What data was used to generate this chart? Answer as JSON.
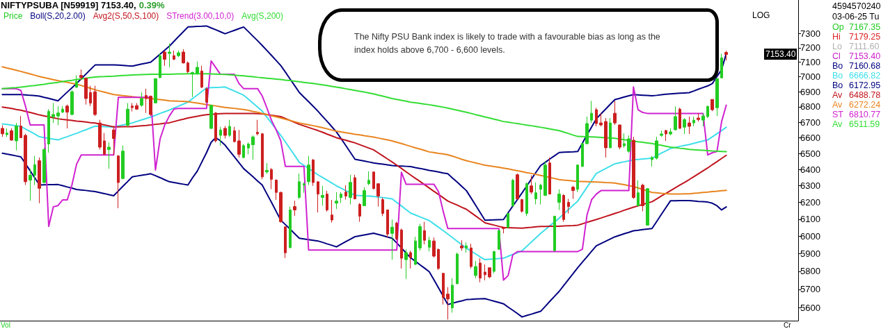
{
  "chart_data": {
    "type": "candlestick",
    "title": "NIFTYPSUBA [N59919] 7153.40,",
    "subtitle": "0.39%",
    "categories": [
      null,
      null,
      null,
      null,
      null,
      null,
      null,
      null,
      null,
      null,
      null,
      null,
      null,
      null,
      null,
      null,
      null,
      null,
      null,
      null,
      null,
      null,
      null,
      null,
      null,
      null,
      null,
      null,
      null,
      null,
      null,
      null,
      null,
      null,
      null,
      null,
      null,
      null,
      null,
      null,
      null,
      null,
      null,
      null,
      null,
      null,
      null,
      null,
      null,
      null,
      null,
      null,
      null,
      null,
      null,
      null,
      null,
      null,
      null,
      null,
      null,
      null,
      null,
      null,
      null,
      null,
      null,
      null,
      null,
      null,
      null,
      null,
      null,
      null,
      null,
      null,
      null,
      null,
      null,
      null,
      null,
      null,
      null,
      null,
      null,
      null,
      null,
      null,
      null,
      null,
      null,
      null,
      null,
      null,
      null,
      null,
      null,
      null,
      null,
      null,
      null,
      null,
      null,
      null,
      null,
      null,
      null,
      null,
      null,
      null,
      null,
      null,
      null,
      null,
      null,
      null,
      null,
      null,
      null,
      null,
      null,
      null,
      null,
      null,
      null,
      null,
      null,
      null,
      null,
      null,
      null,
      null,
      null,
      null,
      null,
      null,
      null,
      null,
      null,
      null,
      null,
      null,
      null,
      null,
      null,
      null,
      null,
      null,
      null,
      null,
      null,
      null,
      null,
      null,
      null,
      null,
      null
    ],
    "series": [
      {
        "name": "Price",
        "color": "#22cc22",
        "ohlc": [
          [
            6660,
            6680,
            6605,
            6625
          ],
          [
            6620,
            6660,
            6605,
            6630
          ],
          [
            6645,
            6660,
            6580,
            6585
          ],
          [
            6580,
            6695,
            6520,
            6675
          ],
          [
            6675,
            6740,
            6598,
            6600
          ],
          [
            6615,
            6625,
            6305,
            6325
          ],
          [
            6335,
            6405,
            6210,
            6365
          ],
          [
            6365,
            6485,
            6305,
            6430
          ],
          [
            6455,
            6475,
            6195,
            6285
          ],
          [
            6320,
            6535,
            6315,
            6525
          ],
          [
            6560,
            6785,
            6505,
            6770
          ],
          [
            6735,
            6825,
            6695,
            6750
          ],
          [
            6740,
            6805,
            6680,
            6760
          ],
          [
            6765,
            6805,
            6760,
            6785
          ],
          [
            6805,
            6815,
            6660,
            6765
          ],
          [
            6750,
            6910,
            6745,
            6900
          ],
          [
            6930,
            7010,
            6925,
            6970
          ],
          [
            7010,
            7050,
            6980,
            6995
          ],
          [
            6990,
            6995,
            6815,
            6855
          ],
          [
            6895,
            6940,
            6805,
            6825
          ],
          [
            6900,
            6940,
            6740,
            6750
          ],
          [
            6695,
            6715,
            6525,
            6540
          ],
          [
            6580,
            6630,
            6490,
            6495
          ],
          [
            6525,
            6570,
            6405,
            6540
          ],
          [
            6650,
            6675,
            6490,
            6595
          ],
          [
            6485,
            6490,
            6165,
            6320
          ],
          [
            6345,
            6550,
            6340,
            6515
          ],
          [
            6680,
            6825,
            6670,
            6785
          ],
          [
            6805,
            6825,
            6770,
            6795
          ],
          [
            6808,
            6825,
            6780,
            6785
          ],
          [
            6810,
            6895,
            6800,
            6855
          ],
          [
            6875,
            6920,
            6760,
            6855
          ],
          [
            6870,
            6875,
            6740,
            6750
          ],
          [
            6826,
            6990,
            6825,
            6988
          ],
          [
            6995,
            7160,
            6990,
            7145
          ],
          [
            7170,
            7180,
            7075,
            7120
          ],
          [
            7160,
            7230,
            7065,
            7170
          ],
          [
            7145,
            7180,
            7115,
            7120
          ],
          [
            7145,
            7180,
            7135,
            7165
          ],
          [
            7170,
            7190,
            7090,
            7095
          ],
          [
            7095,
            7105,
            7025,
            7035
          ],
          [
            7020,
            7035,
            6865,
            7030
          ],
          [
            7025,
            7105,
            7015,
            7065
          ],
          [
            7040,
            7075,
            6925,
            6930
          ],
          [
            6920,
            6930,
            6828,
            6830
          ],
          [
            6660,
            6815,
            6655,
            6810
          ],
          [
            6760,
            6765,
            6570,
            6580
          ],
          [
            6615,
            6670,
            6550,
            6650
          ],
          [
            6660,
            6675,
            6595,
            6615
          ],
          [
            6615,
            6715,
            6605,
            6673
          ],
          [
            6645,
            6670,
            6570,
            6575
          ],
          [
            6580,
            6650,
            6475,
            6495
          ],
          [
            6475,
            6560,
            6470,
            6550
          ],
          [
            6535,
            6570,
            6495,
            6560
          ],
          [
            6555,
            6615,
            6460,
            6605
          ],
          [
            6635,
            6715,
            6615,
            6625
          ],
          [
            6625,
            6630,
            6340,
            6355
          ],
          [
            6385,
            6440,
            6375,
            6395
          ],
          [
            6400,
            6410,
            6280,
            6340
          ],
          [
            6335,
            6340,
            6215,
            6260
          ],
          [
            6260,
            6265,
            6080,
            6085
          ],
          [
            6055,
            6058,
            5875,
            5905
          ],
          [
            5935,
            6175,
            5930,
            6155
          ],
          [
            6175,
            6210,
            6120,
            6155
          ],
          [
            6230,
            6375,
            6220,
            6325
          ],
          [
            6305,
            6320,
            6258,
            6312
          ],
          [
            6325,
            6485,
            6305,
            6428
          ],
          [
            6460,
            6465,
            6300,
            6320
          ],
          [
            6325,
            6327,
            6140,
            6250
          ],
          [
            6230,
            6300,
            6180,
            6242
          ],
          [
            6250,
            6270,
            6145,
            6155
          ],
          [
            6125,
            6215,
            6080,
            6095
          ],
          [
            6195,
            6262,
            6160,
            6208
          ],
          [
            6229,
            6262,
            6196,
            6250
          ],
          [
            6262,
            6304,
            6217,
            6238
          ],
          [
            6229,
            6368,
            6188,
            6321
          ],
          [
            6350,
            6368,
            6218,
            6221
          ],
          [
            6188,
            6196,
            6085,
            6118
          ],
          [
            6180,
            6292,
            6178,
            6271
          ],
          [
            6313,
            6389,
            6304,
            6334
          ],
          [
            6385,
            6387,
            6279,
            6283
          ],
          [
            6313,
            6315,
            6175,
            6238
          ],
          [
            6217,
            6229,
            6118,
            6134
          ],
          [
            6155,
            6157,
            5993,
            6013
          ],
          [
            6017,
            6098,
            5866,
            6053
          ],
          [
            6077,
            6085,
            5977,
            5985
          ],
          [
            6037,
            6045,
            5816,
            5874
          ],
          [
            5866,
            5925,
            5758,
            5906
          ],
          [
            5906,
            5917,
            5816,
            5878
          ],
          [
            5839,
            5997,
            5837,
            5973
          ],
          [
            5933,
            6073,
            5917,
            6057
          ],
          [
            6033,
            6085,
            5953,
            5977
          ],
          [
            5937,
            5997,
            5913,
            5977
          ],
          [
            5973,
            5993,
            5878,
            5886
          ],
          [
            5925,
            5928,
            5808,
            5816
          ],
          [
            5789,
            5792,
            5617,
            5655
          ],
          [
            5674,
            5712,
            5536,
            5647
          ],
          [
            5599,
            5762,
            5573,
            5723
          ],
          [
            5731,
            5906,
            5729,
            5898
          ],
          [
            5945,
            5977,
            5917,
            5933
          ],
          [
            5933,
            5965,
            5906,
            5945
          ],
          [
            5933,
            5957,
            5816,
            5827
          ],
          [
            5777,
            5859,
            5762,
            5827
          ],
          [
            5847,
            5874,
            5739,
            5762
          ],
          [
            5796,
            5839,
            5750,
            5781
          ],
          [
            5820,
            5822,
            5762,
            5769
          ],
          [
            5800,
            5915,
            5789,
            5913
          ],
          [
            5925,
            6037,
            5923,
            6033
          ],
          [
            6053,
            6055,
            6017,
            6045
          ],
          [
            6053,
            6136,
            6045,
            6134
          ],
          [
            6180,
            6342,
            6175,
            6334
          ],
          [
            6368,
            6376,
            6217,
            6221
          ],
          [
            6217,
            6221,
            6139,
            6147
          ],
          [
            6134,
            6321,
            6118,
            6313
          ],
          [
            6300,
            6364,
            6250,
            6262
          ],
          [
            6221,
            6321,
            6188,
            6258
          ],
          [
            6279,
            6313,
            6188,
            6304
          ],
          [
            6242,
            6453,
            6238,
            6428
          ],
          [
            6441,
            6475,
            6248,
            6250
          ],
          [
            5917,
            6120,
            5915,
            6118
          ],
          [
            6200,
            6279,
            6155,
            6250
          ],
          [
            6242,
            6250,
            6085,
            6098
          ],
          [
            6200,
            6221,
            6134,
            6175
          ],
          [
            6292,
            6300,
            6221,
            6271
          ],
          [
            6279,
            6432,
            6262,
            6428
          ],
          [
            6419,
            6571,
            6417,
            6562
          ],
          [
            6562,
            6736,
            6558,
            6691
          ],
          [
            6713,
            6839,
            6695,
            6758
          ],
          [
            6781,
            6794,
            6673,
            6691
          ],
          [
            6695,
            6758,
            6673,
            6682
          ],
          [
            6704,
            6727,
            6475,
            6536
          ],
          [
            6536,
            6727,
            6534,
            6695
          ],
          [
            6758,
            6839,
            6682,
            6695
          ],
          [
            6682,
            6684,
            6527,
            6540
          ],
          [
            6549,
            6628,
            6536,
            6562
          ],
          [
            6514,
            6615,
            6505,
            6593
          ],
          [
            6584,
            6606,
            6221,
            6229
          ],
          [
            6180,
            6334,
            6178,
            6258
          ],
          [
            6304,
            6313,
            6147,
            6180
          ],
          [
            6065,
            6285,
            6063,
            6283
          ],
          [
            6462,
            6484,
            6419,
            6475
          ],
          [
            6471,
            6606,
            6462,
            6580
          ],
          [
            6615,
            6646,
            6606,
            6624
          ],
          [
            6646,
            6651,
            6580,
            6624
          ],
          [
            6624,
            6660,
            6615,
            6637
          ],
          [
            6651,
            6803,
            6646,
            6736
          ],
          [
            6785,
            6794,
            6658,
            6660
          ],
          [
            6668,
            6727,
            6624,
            6717
          ],
          [
            6695,
            6736,
            6624,
            6673
          ],
          [
            6695,
            6736,
            6673,
            6713
          ],
          [
            6727,
            6758,
            6704,
            6717
          ],
          [
            6713,
            6758,
            6673,
            6740
          ],
          [
            6736,
            6808,
            6727,
            6803
          ],
          [
            6849,
            6851,
            6772,
            6781
          ],
          [
            6794,
            6990,
            6740,
            6988
          ],
          [
            6993,
            7158,
            6990,
            7130
          ],
          [
            7167.35,
            7179.25,
            7111.6,
            7153.4
          ]
        ],
        "colors": [
          "#cc1f1f",
          "#22cc22",
          "#cc1f1f",
          "#22cc22",
          "#cc1f1f",
          "#cc1f1f",
          "#22cc22",
          "#22cc22",
          "#cc1f1f",
          "#22cc22",
          "#22cc22",
          "#22cc22",
          "#22cc22",
          "#22cc22",
          "#cc1f1f",
          "#22cc22",
          "#22cc22",
          "#cc1f1f",
          "#cc1f1f",
          "#cc1f1f",
          "#cc1f1f",
          "#cc1f1f",
          "#cc1f1f",
          "#22cc22",
          "#cc1f1f",
          "#cc1f1f",
          "#22cc22",
          "#22cc22",
          "#cc1f1f",
          "#cc1f1f",
          "#22cc22",
          "#cc1f1f",
          "#cc1f1f",
          "#22cc22",
          "#22cc22",
          "#cc1f1f",
          "#22cc22",
          "#cc1f1f",
          "#22cc22",
          "#cc1f1f",
          "#cc1f1f",
          "#22cc22",
          "#22cc22",
          "#cc1f1f",
          "#cc1f1f",
          "#22cc22",
          "#cc1f1f",
          "#22cc22",
          "#cc1f1f",
          "#22cc22",
          "#cc1f1f",
          "#cc1f1f",
          "#22cc22",
          "#22cc22",
          "#22cc22",
          "#cc1f1f",
          "#cc1f1f",
          "#22cc22",
          "#cc1f1f",
          "#cc1f1f",
          "#cc1f1f",
          "#cc1f1f",
          "#22cc22",
          "#cc1f1f",
          "#22cc22",
          "#22cc22",
          "#22cc22",
          "#cc1f1f",
          "#cc1f1f",
          "#22cc22",
          "#cc1f1f",
          "#cc1f1f",
          "#22cc22",
          "#22cc22",
          "#cc1f1f",
          "#22cc22",
          "#cc1f1f",
          "#cc1f1f",
          "#22cc22",
          "#22cc22",
          "#cc1f1f",
          "#cc1f1f",
          "#cc1f1f",
          "#cc1f1f",
          "#22cc22",
          "#cc1f1f",
          "#cc1f1f",
          "#22cc22",
          "#cc1f1f",
          "#22cc22",
          "#22cc22",
          "#cc1f1f",
          "#22cc22",
          "#cc1f1f",
          "#cc1f1f",
          "#cc1f1f",
          "#cc1f1f",
          "#22cc22",
          "#22cc22",
          "#cc1f1f",
          "#22cc22",
          "#cc1f1f",
          "#22cc22",
          "#cc1f1f",
          "#cc1f1f",
          "#cc1f1f",
          "#22cc22",
          "#22cc22",
          "#cc1f1f",
          "#22cc22",
          "#22cc22",
          "#cc1f1f",
          "#cc1f1f",
          "#22cc22",
          "#cc1f1f",
          "#22cc22",
          "#22cc22",
          "#22cc22",
          "#cc1f1f",
          "#22cc22",
          "#22cc22",
          "#cc1f1f",
          "#cc1f1f",
          "#cc1f1f",
          "#22cc22",
          "#22cc22",
          "#22cc22",
          "#22cc22",
          "#cc1f1f",
          "#cc1f1f",
          "#cc1f1f",
          "#22cc22",
          "#cc1f1f",
          "#cc1f1f",
          "#22cc22",
          "#22cc22",
          "#cc1f1f",
          "#22cc22",
          "#cc1f1f",
          "#22cc22",
          "#22cc22",
          "#22cc22",
          "#22cc22",
          "#cc1f1f",
          "#22cc22",
          "#22cc22",
          "#cc1f1f",
          "#22cc22",
          "#cc1f1f",
          "#22cc22",
          "#cc1f1f",
          "#22cc22",
          "#22cc22",
          "#cc1f1f",
          "#22cc22",
          "#22cc22",
          "#cc1f1f"
        ]
      },
      {
        "type": "line",
        "name": "Boll(S,20,2.00)",
        "color": "#000080",
        "values": [
          6881,
          6881,
          6881,
          6881,
          6881,
          6879,
          6876,
          6874,
          6871,
          6863,
          6856,
          6848,
          6840,
          6869,
          6898,
          6926,
          6955,
          6987,
          7018,
          7050,
          7081,
          7081,
          7082,
          7082,
          7082,
          7080,
          7078,
          7075,
          7073,
          7080,
          7087,
          7093,
          7100,
          7128,
          7156,
          7183,
          7211,
          7245,
          7279,
          7312,
          7346,
          7348,
          7350,
          7351,
          7353,
          7339,
          7326,
          7312,
          7298,
          7310,
          7322,
          7334,
          7346,
          7314,
          7281,
          7249,
          7216,
          7181,
          7147,
          7112,
          7077,
          7032,
          6986,
          6941,
          6895,
          6864,
          6834,
          6803,
          6772,
          6738,
          6705,
          6671,
          6637,
          6594,
          6551,
          6507,
          6464,
          6458,
          6453,
          6447,
          6441,
          6437,
          6433,
          6429,
          6425,
          6423,
          6422,
          6420,
          6418,
          6412,
          6407,
          6401,
          6395,
          6390,
          6385,
          6379,
          6374,
          6348,
          6323,
          6297,
          6271,
          6227,
          6183,
          6138,
          6094,
          6095,
          6096,
          6097,
          6098,
          6138,
          6178,
          6217,
          6257,
          6299,
          6341,
          6383,
          6425,
          6445,
          6466,
          6486,
          6506,
          6508,
          6510,
          6511,
          6513,
          6565,
          6618,
          6670,
          6722,
          6754,
          6785,
          6817,
          6848,
          6856,
          6865,
          6873,
          6881,
          6879,
          6877,
          6875,
          6873,
          6876,
          6880,
          6883,
          6886,
          6888,
          6890,
          6892,
          6894,
          6905,
          6917,
          6928,
          6939,
          6955,
          7002,
          7049,
          7160.68
        ]
      },
      {
        "type": "line",
        "color": "#3fdfea",
        "values": [
          6689,
          6685,
          6681,
          6677,
          6673,
          6656,
          6640,
          6623,
          6606,
          6601,
          6596,
          6591,
          6586,
          6597,
          6607,
          6618,
          6628,
          6640,
          6651,
          6663,
          6674,
          6673,
          6671,
          6670,
          6668,
          6675,
          6682,
          6688,
          6695,
          6705,
          6715,
          6724,
          6734,
          6745,
          6757,
          6768,
          6779,
          6792,
          6805,
          6818,
          6831,
          6855,
          6878,
          6902,
          6925,
          6927,
          6929,
          6930,
          6932,
          6918,
          6905,
          6891,
          6877,
          6851,
          6825,
          6798,
          6772,
          6733,
          6694,
          6654,
          6615,
          6573,
          6530,
          6488,
          6445,
          6426,
          6407,
          6387,
          6368,
          6351,
          6334,
          6317,
          6300,
          6286,
          6271,
          6257,
          6242,
          6241,
          6239,
          6238,
          6236,
          6232,
          6229,
          6225,
          6221,
          6200,
          6179,
          6157,
          6136,
          6125,
          6114,
          6103,
          6092,
          6072,
          6053,
          6033,
          6013,
          5993,
          5972,
          5952,
          5931,
          5915,
          5899,
          5882,
          5866,
          5868,
          5870,
          5872,
          5874,
          5885,
          5896,
          5906,
          5917,
          5942,
          5967,
          5992,
          6017,
          6039,
          6062,
          6084,
          6106,
          6132,
          6157,
          6183,
          6208,
          6250,
          6292,
          6334,
          6376,
          6391,
          6406,
          6421,
          6436,
          6442,
          6448,
          6454,
          6460,
          6463,
          6466,
          6468,
          6471,
          6486,
          6502,
          6517,
          6532,
          6538,
          6545,
          6551,
          6557,
          6564,
          6572,
          6579,
          6586,
          6606,
          6626,
          6646,
          6666.82
        ]
      },
      {
        "type": "line",
        "color": "#000080",
        "values": [
          6502,
          6496,
          6491,
          6485,
          6479,
          6436,
          6392,
          6349,
          6305,
          6306,
          6307,
          6307,
          6308,
          6301,
          6293,
          6286,
          6278,
          6275,
          6272,
          6268,
          6265,
          6259,
          6253,
          6246,
          6240,
          6269,
          6298,
          6326,
          6355,
          6360,
          6365,
          6369,
          6374,
          6362,
          6350,
          6337,
          6325,
          6320,
          6315,
          6310,
          6305,
          6350,
          6390,
          6447,
          6505,
          6571,
          6601,
          6580,
          6553,
          6516,
          6480,
          6443,
          6406,
          6381,
          6356,
          6330,
          6305,
          6252,
          6200,
          6147,
          6094,
          6068,
          6042,
          6015,
          5989,
          5985,
          5981,
          5977,
          5973,
          5965,
          5956,
          5948,
          5939,
          5954,
          5969,
          5983,
          5998,
          6003,
          6008,
          6013,
          6018,
          6011,
          6004,
          5996,
          5989,
          5961,
          5933,
          5904,
          5876,
          5857,
          5837,
          5818,
          5798,
          5753,
          5708,
          5662,
          5617,
          5624,
          5631,
          5637,
          5644,
          5645,
          5647,
          5648,
          5649,
          5642,
          5635,
          5628,
          5621,
          5603,
          5586,
          5568,
          5550,
          5558,
          5565,
          5573,
          5580,
          5607,
          5635,
          5662,
          5689,
          5722,
          5755,
          5788,
          5821,
          5852,
          5883,
          5914,
          5945,
          5958,
          5971,
          5984,
          5997,
          6006,
          6015,
          6023,
          6032,
          6035,
          6039,
          6042,
          6045,
          6086,
          6128,
          6169,
          6210,
          6210,
          6211,
          6211,
          6211,
          6209,
          6206,
          6204,
          6202,
          6195,
          6180,
          6155,
          6172.95
        ]
      },
      {
        "type": "line",
        "name": "Avg2(S,50,S,100)",
        "color": "#c0141e",
        "values": [
          6799,
          6794,
          6789,
          6783,
          6778,
          6770,
          6763,
          6755,
          6747,
          6741,
          6735,
          6728,
          6722,
          6718,
          6715,
          6711,
          6707,
          6704,
          6701,
          6697,
          6694,
          6688,
          6682,
          6676,
          6670,
          6670,
          6671,
          6671,
          6671,
          6674,
          6677,
          6679,
          6682,
          6686,
          6689,
          6693,
          6696,
          6704,
          6712,
          6719,
          6727,
          6733,
          6738,
          6744,
          6749,
          6751,
          6753,
          6755,
          6757,
          6757,
          6757,
          6757,
          6757,
          6756,
          6756,
          6755,
          6754,
          6750,
          6745,
          6741,
          6736,
          6724,
          6711,
          6699,
          6686,
          6676,
          6666,
          6656,
          6646,
          6635,
          6623,
          6612,
          6600,
          6592,
          6584,
          6575,
          6567,
          6556,
          6545,
          6534,
          6523,
          6504,
          6485,
          6466,
          6447,
          6427,
          6407,
          6386,
          6366,
          6346,
          6327,
          6307,
          6287,
          6267,
          6248,
          6228,
          6208,
          6196,
          6184,
          6171,
          6159,
          6139,
          6119,
          6099,
          6079,
          6072,
          6065,
          6058,
          6051,
          6050,
          6049,
          6048,
          6047,
          6050,
          6052,
          6055,
          6057,
          6057,
          6058,
          6058,
          6058,
          6060,
          6062,
          6063,
          6065,
          6073,
          6082,
          6090,
          6098,
          6107,
          6116,
          6125,
          6134,
          6143,
          6153,
          6162,
          6171,
          6179,
          6188,
          6196,
          6204,
          6221,
          6238,
          6254,
          6271,
          6288,
          6305,
          6321,
          6338,
          6356,
          6374,
          6392,
          6410,
          6430,
          6449,
          6469,
          6488.78
        ]
      },
      {
        "type": "line",
        "color": "#e8841e",
        "values": [
          7068,
          7060,
          7053,
          7045,
          7037,
          7028,
          7020,
          7011,
          7002,
          6995,
          6988,
          6981,
          6974,
          6968,
          6963,
          6957,
          6951,
          6942,
          6932,
          6923,
          6913,
          6905,
          6897,
          6889,
          6881,
          6878,
          6874,
          6871,
          6867,
          6864,
          6861,
          6858,
          6855,
          6851,
          6848,
          6844,
          6840,
          6839,
          6837,
          6836,
          6834,
          6829,
          6825,
          6820,
          6815,
          6810,
          6806,
          6801,
          6796,
          6793,
          6790,
          6786,
          6783,
          6777,
          6770,
          6764,
          6757,
          6750,
          6742,
          6735,
          6727,
          6719,
          6711,
          6703,
          6695,
          6689,
          6683,
          6677,
          6671,
          6664,
          6657,
          6649,
          6642,
          6637,
          6632,
          6627,
          6622,
          6618,
          6613,
          6609,
          6604,
          6598,
          6592,
          6586,
          6580,
          6571,
          6563,
          6554,
          6545,
          6536,
          6528,
          6519,
          6510,
          6506,
          6501,
          6497,
          6492,
          6483,
          6474,
          6464,
          6455,
          6448,
          6441,
          6434,
          6427,
          6423,
          6418,
          6414,
          6409,
          6404,
          6398,
          6393,
          6387,
          6381,
          6376,
          6370,
          6364,
          6358,
          6351,
          6345,
          6338,
          6335,
          6333,
          6330,
          6327,
          6326,
          6325,
          6324,
          6323,
          6322,
          6320,
          6319,
          6317,
          6312,
          6307,
          6301,
          6296,
          6287,
          6278,
          6269,
          6260,
          6258,
          6255,
          6253,
          6250,
          6251,
          6251,
          6252,
          6252,
          6255,
          6257,
          6260,
          6262,
          6265,
          6267,
          6270,
          6272.24
        ]
      },
      {
        "type": "line",
        "name": "STrend(3.00,10,0)",
        "color": "#d022d0",
        "values": [
          6920,
          6920,
          6920,
          6920,
          6909,
          6803,
          6682,
          6682,
          6682,
          6682,
          6058,
          6174,
          6181,
          6215,
          6215,
          6305,
          6433,
          6491,
          6491,
          6491,
          6491,
          6491,
          6491,
          6491,
          6491,
          6863,
          6863,
          6863,
          6863,
          6863,
          6863,
          6863,
          6863,
          6397,
          6593,
          6682,
          6740,
          6786,
          6790,
          6790,
          6790,
          6790,
          6790,
          6790,
          6790,
          7109,
          7063,
          7017,
          7017,
          7017,
          7017,
          6955,
          6921,
          6921,
          6921,
          6921,
          6872,
          6794,
          6712,
          6651,
          6580,
          6419,
          6419,
          6419,
          6419,
          6419,
          5921,
          5921,
          5921,
          5921,
          5921,
          5921,
          5921,
          5921,
          5921,
          5921,
          5921,
          5921,
          5921,
          5921,
          5921,
          5921,
          5921,
          5921,
          5921,
          5921,
          6383,
          6310,
          6310,
          6310,
          6310,
          6310,
          6310,
          6310,
          6264,
          6147,
          6045,
          6045,
          6045,
          6045,
          6045,
          6045,
          6045,
          6045,
          6045,
          6045,
          6045,
          6045,
          5751,
          5777,
          5893,
          5912,
          5912,
          5912,
          5912,
          5912,
          5912,
          5912,
          5912,
          5912,
          5912,
          5912,
          5912,
          5912,
          5912,
          5925,
          6126,
          6217,
          6250,
          6271,
          6271,
          6271,
          6271,
          6271,
          6271,
          6271,
          6932,
          6781,
          6763,
          6757,
          6757,
          6757,
          6757,
          6757,
          6757,
          6757,
          6757,
          6757,
          6757,
          6757,
          6757,
          6757,
          6491,
          6505,
          6513,
          6704,
          6810.77
        ]
      },
      {
        "type": "line",
        "name": "Avg(S,200)",
        "color": "#33dd33",
        "values": [
          6920,
          6923,
          6926,
          6928,
          6931,
          6935,
          6939,
          6942,
          6946,
          6950,
          6955,
          6959,
          6963,
          6968,
          6973,
          6977,
          6982,
          6986,
          6991,
          6995,
          6999,
          7001,
          7002,
          7004,
          7005,
          7007,
          7009,
          7011,
          7013,
          7014,
          7015,
          7016,
          7017,
          7017,
          7018,
          7018,
          7018,
          7019,
          7020,
          7020,
          7021,
          7021,
          7021,
          7021,
          7021,
          7020,
          7019,
          7017,
          7016,
          7014,
          7012,
          7009,
          7007,
          7004,
          7001,
          6997,
          6994,
          6991,
          6988,
          6985,
          6982,
          6978,
          6975,
          6971,
          6967,
          6963,
          6959,
          6955,
          6951,
          6946,
          6941,
          6936,
          6931,
          6926,
          6920,
          6915,
          6909,
          6903,
          6898,
          6892,
          6886,
          6878,
          6871,
          6863,
          6855,
          6849,
          6843,
          6837,
          6831,
          6827,
          6823,
          6818,
          6814,
          6809,
          6803,
          6798,
          6792,
          6785,
          6778,
          6771,
          6764,
          6757,
          6749,
          6742,
          6734,
          6727,
          6719,
          6712,
          6704,
          6700,
          6695,
          6691,
          6686,
          6681,
          6677,
          6672,
          6667,
          6662,
          6656,
          6651,
          6645,
          6636,
          6627,
          6617,
          6608,
          6607,
          6606,
          6605,
          6604,
          6602,
          6600,
          6598,
          6596,
          6592,
          6587,
          6583,
          6578,
          6574,
          6571,
          6567,
          6563,
          6557,
          6552,
          6546,
          6540,
          6537,
          6533,
          6530,
          6526,
          6524,
          6522,
          6520,
          6518,
          6516,
          6515,
          6513,
          6511.59
        ]
      }
    ],
    "ylim": [
      5530,
      7540
    ],
    "yticks": [
      5600,
      5700,
      5800,
      5900,
      6000,
      6100,
      6200,
      6300,
      6400,
      6500,
      6600,
      6700,
      6800,
      6900,
      7000,
      7100,
      7200,
      7300
    ],
    "log": true,
    "tick_labels": "y",
    "legend": "top left",
    "annotations": [
      "7153.40",
      "The Nifty PSU Bank index is likely to trade with a favourable bias as long as the index holds above 6,700 - 6,600 levels.",
      "LOG",
      "4594570240",
      "03-06-25 Tu",
      "Op 7167.35",
      "Hi 7179.25",
      "Lo 7111.60",
      "Cl 7153.40",
      "Bo 7160.68",
      "Bo 6666.82",
      "Bo 6172.95",
      "Av 6488.78",
      "Av 6272.24",
      "ST 6810.77",
      "Av 6511.59",
      "Vol",
      "Cr"
    ]
  }
}
